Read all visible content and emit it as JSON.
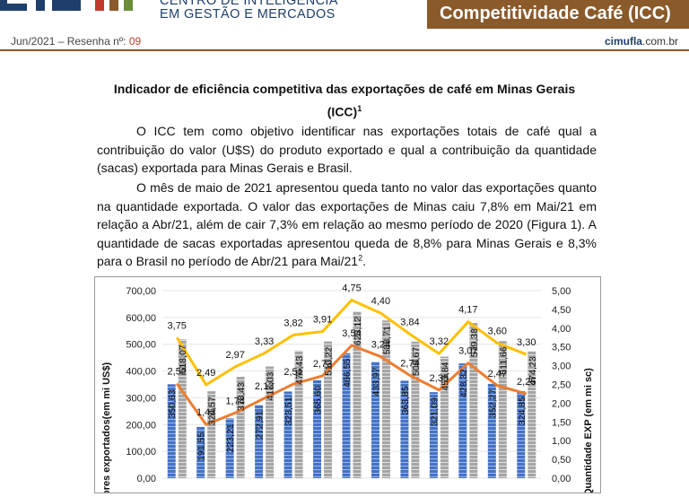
{
  "header": {
    "logo_line1": "CENTRO DE INTELIGÊNCIA",
    "logo_line2": "EM GESTÃO E MERCADOS",
    "title": "Competitividade Café (ICC)"
  },
  "subheader": {
    "issue": "Jun/2021 – Resenha nº: ",
    "issue_number": "09",
    "site_brand": "cimufla",
    "site_suffix": ".com.br"
  },
  "document": {
    "title_line1": "Indicador de eficiência competitiva das exportações de café em Minas Gerais",
    "title_line2": "(ICC)",
    "title_note": "1",
    "para1": "O ICC tem como objetivo identificar nas exportações totais de café qual a contribuição do valor (U$S) do produto exportado e qual a contribuição da quantidade (sacas) exportada para Minas Gerais e Brasil.",
    "para2": "O mês de maio de 2021 apresentou queda tanto no valor das exportações quanto na quantidade exportada. O valor das exportações de Minas caiu 7,8% em Mai/21 em relação a Abr/21, além de cair 7,3% em relação ao mesmo período de 2020 (Figura 1). A quantidade de sacas exportadas apresentou queda de 8,8% para Minas Gerais e 8,3% para o Brasil no período de Abr/21 para Mai/21",
    "para2_note": "2",
    "para2_end": "."
  },
  "chart_data": {
    "type": "bar",
    "ylabel": "ores exportados(em mi US$)",
    "y2label": "Quantidade EXP (em mi sc)",
    "ylim": [
      0,
      700
    ],
    "y2lim": [
      0,
      5
    ],
    "yticks": [
      "0,00",
      "100,00",
      "200,00",
      "300,00",
      "400,00",
      "500,00",
      "600,00",
      "700,00"
    ],
    "y2ticks": [
      "0,00",
      "0,50",
      "1,00",
      "1,50",
      "2,00",
      "2,50",
      "3,00",
      "3,50",
      "4,00",
      "4,50",
      "5,00"
    ],
    "series": [
      {
        "values": [
          350.63,
          191.55,
          223.21,
          272.91,
          323.51,
          365.6,
          466.55,
          433.97,
          363.85,
          321.09,
          428.32,
          352.27,
          324.85
        ],
        "labels": [
          "350,63",
          "191,55",
          "223,21",
          "272,91",
          "323,51",
          "365,60",
          "466,55",
          "433,97",
          "363,85",
          "321,09",
          "428,32",
          "352,27",
          "324,85"
        ],
        "color": "#4472c4"
      },
      {
        "values": [
          518.07,
          324.57,
          378.43,
          417.03,
          476.43,
          510.22,
          623.12,
          588.71,
          509.67,
          453.84,
          579.38,
          511.66,
          474.23
        ],
        "labels": [
          "518,07",
          "324,57",
          "378,43",
          "417,03",
          "476,43",
          "510,22",
          "623,12",
          "588,71",
          "509,67",
          "453,84",
          "579,38",
          "511,66",
          "474,23"
        ],
        "color": "#a5a5a5"
      },
      {
        "axis": "right",
        "values": [
          2.52,
          1.43,
          1.74,
          2.13,
          2.51,
          2.73,
          3.54,
          3.24,
          2.74,
          2.35,
          3.07,
          2.47,
          2.25
        ],
        "labels": [
          "2,52",
          "1,43",
          "1,74",
          "2,13",
          "2,51",
          "2,73",
          "3,54",
          "3,24",
          "2,74",
          "2,35",
          "3,07",
          "2,47",
          "2,25"
        ],
        "color": "#ed7d31"
      },
      {
        "axis": "right",
        "values": [
          3.75,
          2.49,
          2.97,
          3.33,
          3.82,
          3.91,
          4.75,
          4.4,
          3.84,
          3.32,
          4.17,
          3.6,
          3.3
        ],
        "labels": [
          "3,75",
          "2,49",
          "2,97",
          "3,33",
          "3,82",
          "3,91",
          "4,75",
          "4,40",
          "3,84",
          "3,32",
          "4,17",
          "3,60",
          "3,30"
        ],
        "color": "#ffc000"
      }
    ]
  }
}
